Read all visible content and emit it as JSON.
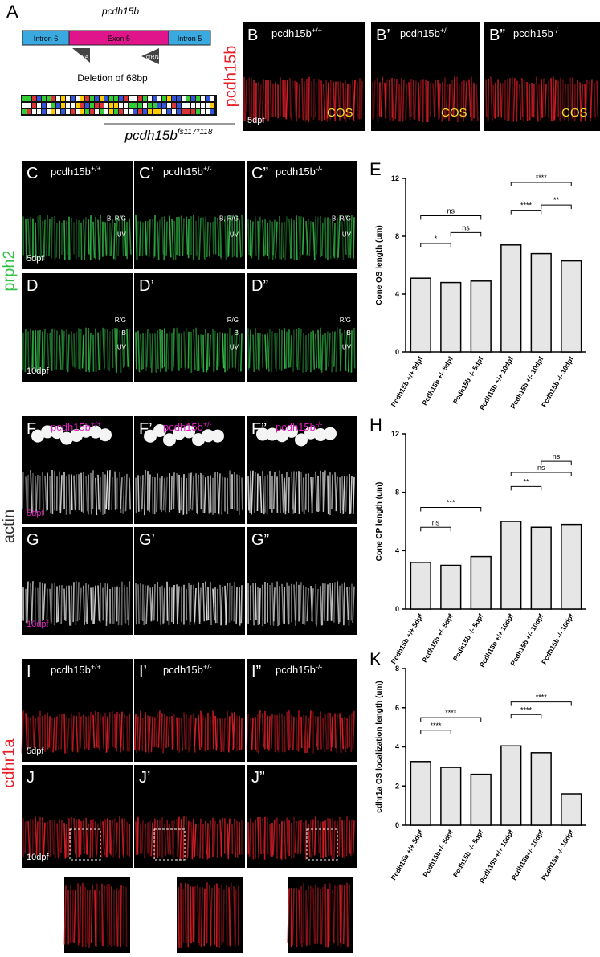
{
  "panel_a": {
    "letter": "A",
    "gene": "pcdh15b",
    "intron_left": "Intron 6",
    "exon": "Exon 5",
    "intron_right": "Intron 5",
    "guide_left": "crRNA",
    "guide_right": "crRNA",
    "deletion": "Deletion of 68bp",
    "allele_gene": "pcdh15b",
    "allele_sup": "fs117*118"
  },
  "stains": [
    {
      "label": "pcdh15b",
      "color": "#e8202a"
    },
    {
      "label": "prph2",
      "color": "#36c04a"
    },
    {
      "label": "actin",
      "color": "#333333"
    },
    {
      "label": "cdhr1a",
      "color": "#e8202a"
    }
  ],
  "images": [
    {
      "letter": "B",
      "gene": "pcdh15b",
      "genotype": "+/+",
      "age": "5dpf",
      "zone": "COS"
    },
    {
      "letter": "B’",
      "gene": "pcdh15b",
      "genotype": "+/-",
      "zone": "COS"
    },
    {
      "letter": "B”",
      "gene": "pcdh15b",
      "genotype": "-/-",
      "zone": "COS"
    },
    {
      "letter": "C",
      "gene": "pcdh15b",
      "genotype": "+/+",
      "age": "5dpf",
      "cones": [
        "B, R/G",
        "UV"
      ]
    },
    {
      "letter": "C’",
      "gene": "pcdh15b",
      "genotype": "+/-",
      "cones": [
        "B, R/G",
        "UV"
      ]
    },
    {
      "letter": "C”",
      "gene": "pcdh15b",
      "genotype": "-/-",
      "cones": [
        "B, R/G",
        "UV"
      ]
    },
    {
      "letter": "D",
      "age": "10dpf",
      "cones": [
        "R/G",
        "B",
        "UV"
      ]
    },
    {
      "letter": "D’",
      "cones": [
        "R/G",
        "B",
        "UV"
      ]
    },
    {
      "letter": "D”",
      "cones": [
        "R/G",
        "B",
        "UV"
      ]
    },
    {
      "letter": "F",
      "gene": "pcdh15b",
      "genotype": "+/+",
      "age": "5dpf"
    },
    {
      "letter": "F’",
      "gene": "pcdh15b",
      "genotype": "+/-"
    },
    {
      "letter": "F”",
      "gene": "pcdh15b",
      "genotype": "-/-"
    },
    {
      "letter": "G",
      "age": "10dpf"
    },
    {
      "letter": "G’"
    },
    {
      "letter": "G”"
    },
    {
      "letter": "I",
      "gene": "pcdh15b",
      "genotype": "+/+",
      "age": "5dpf"
    },
    {
      "letter": "I’",
      "gene": "pcdh15b",
      "genotype": "+/-"
    },
    {
      "letter": "I”",
      "gene": "pcdh15b",
      "genotype": "-/-"
    },
    {
      "letter": "J",
      "age": "10dpf"
    },
    {
      "letter": "J’"
    },
    {
      "letter": "J”"
    }
  ],
  "chart_data": [
    {
      "type": "bar",
      "label": "E",
      "y_label": "Cone OS length (um)",
      "categories": [
        "Pcdh15b +/+ 5dpf",
        "Pcdh15b +/- 5dpf",
        "Pcdh15b -/- 5dpf",
        "Pcdh15b +/+ 10dpf",
        "Pcdh15b +/- 10dpf",
        "Pcdh15b -/- 10dpf"
      ],
      "values": [
        5.1,
        4.8,
        4.9,
        7.4,
        6.8,
        6.3
      ],
      "ylim": [
        0,
        12
      ],
      "yticks": [
        0,
        4,
        8,
        12
      ],
      "color": "#e6e6e6",
      "annotations": [
        {
          "label": "*",
          "between": [
            0,
            1
          ]
        },
        {
          "label": "ns",
          "between": [
            1,
            2
          ]
        },
        {
          "label": "ns",
          "between": [
            0,
            2
          ]
        },
        {
          "label": "****",
          "between": [
            3,
            4
          ]
        },
        {
          "label": "**",
          "between": [
            4,
            5
          ]
        },
        {
          "label": "****",
          "between": [
            3,
            5
          ]
        }
      ]
    },
    {
      "type": "bar",
      "label": "H",
      "y_label": "Cone CP length (um)",
      "categories": [
        "Pcdh15b +/+ 5dpf",
        "Pcdh15b +/- 5dpf",
        "Pcdh15b -/- 5dpf",
        "Pcdh15b +/+ 10dpf",
        "Pcdh15b +/- 10dpf",
        "Pcdh15b -/- 10dpf"
      ],
      "values": [
        3.2,
        3.0,
        3.6,
        6.0,
        5.6,
        5.8
      ],
      "ylim": [
        0,
        12
      ],
      "yticks": [
        0,
        4,
        8,
        12
      ],
      "color": "#e6e6e6",
      "annotations": [
        {
          "label": "ns",
          "between": [
            0,
            1
          ]
        },
        {
          "label": "***",
          "between": [
            0,
            2
          ]
        },
        {
          "label": "**",
          "between": [
            3,
            4
          ]
        },
        {
          "label": "ns",
          "between": [
            3,
            5
          ]
        },
        {
          "label": "ns",
          "between": [
            4,
            5
          ]
        }
      ]
    },
    {
      "type": "bar",
      "label": "K",
      "y_label": "cdhr1a OS localization length (um)",
      "categories": [
        "Pcdh15b +/+ 5dpf",
        "Pcdh15b+/- 5dpf",
        "Pcdh15b -/- 5dpf",
        "Pcdh15b +/+ 10dpf",
        "Pcdh15b+/- 10dpf",
        "Pcdh15b -/- 10dpf"
      ],
      "values": [
        3.25,
        2.95,
        2.6,
        4.05,
        3.7,
        1.6
      ],
      "ylim": [
        0,
        8
      ],
      "yticks": [
        0,
        2,
        4,
        6,
        8
      ],
      "color": "#e6e6e6",
      "annotations": [
        {
          "label": "****",
          "between": [
            0,
            1
          ]
        },
        {
          "label": "****",
          "between": [
            0,
            2
          ]
        },
        {
          "label": "****",
          "between": [
            3,
            4
          ]
        },
        {
          "label": "****",
          "between": [
            3,
            5
          ]
        }
      ]
    }
  ]
}
